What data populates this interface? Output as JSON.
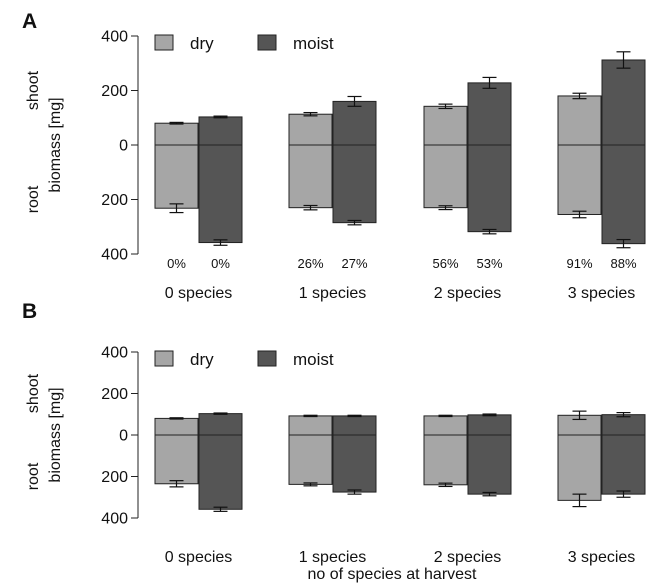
{
  "colors": {
    "dry": "#a6a6a6",
    "moist": "#555555",
    "edge": "#222222"
  },
  "chart_data": [
    {
      "type": "bar",
      "panel": "A",
      "ylabel_lines": [
        "root",
        "shoot",
        "biomass [mg]"
      ],
      "yticks": [
        "400",
        "200",
        "0",
        "200",
        "400"
      ],
      "ylim": [
        -400,
        400
      ],
      "legend": [
        "dry",
        "moist"
      ],
      "legend_position": "top-left",
      "categories": [
        "0 species",
        "1 species",
        "2 species",
        "3 species"
      ],
      "series": [
        {
          "name": "dry",
          "shoot": [
            80,
            113,
            142,
            180
          ],
          "shoot_err": [
            3,
            6,
            8,
            10
          ],
          "root": [
            232,
            230,
            230,
            255
          ],
          "root_err": [
            16,
            8,
            7,
            12
          ]
        },
        {
          "name": "moist",
          "shoot": [
            103,
            160,
            228,
            312
          ],
          "shoot_err": [
            3,
            18,
            20,
            30
          ],
          "root": [
            358,
            285,
            318,
            362
          ],
          "root_err": [
            10,
            8,
            8,
            15
          ]
        }
      ],
      "annotations": [
        [
          "0%",
          "0%"
        ],
        [
          "26%",
          "27%"
        ],
        [
          "56%",
          "53%"
        ],
        [
          "91%",
          "88%"
        ]
      ]
    },
    {
      "type": "bar",
      "panel": "B",
      "ylabel_lines": [
        "root",
        "shoot",
        "biomass [mg]"
      ],
      "yticks": [
        "400",
        "200",
        "0",
        "200",
        "400"
      ],
      "ylim": [
        -400,
        400
      ],
      "legend": [
        "dry",
        "moist"
      ],
      "legend_position": "top-left",
      "categories": [
        "0 species",
        "1 species",
        "2 species",
        "3 species"
      ],
      "series": [
        {
          "name": "dry",
          "shoot": [
            80,
            92,
            92,
            95
          ],
          "shoot_err": [
            3,
            3,
            3,
            20
          ],
          "root": [
            235,
            238,
            240,
            315
          ],
          "root_err": [
            15,
            7,
            8,
            30
          ]
        },
        {
          "name": "moist",
          "shoot": [
            103,
            92,
            97,
            98
          ],
          "shoot_err": [
            3,
            3,
            4,
            10
          ],
          "root": [
            358,
            275,
            285,
            285
          ],
          "root_err": [
            10,
            10,
            8,
            15
          ]
        }
      ]
    }
  ],
  "xlabel": "no of species at harvest"
}
